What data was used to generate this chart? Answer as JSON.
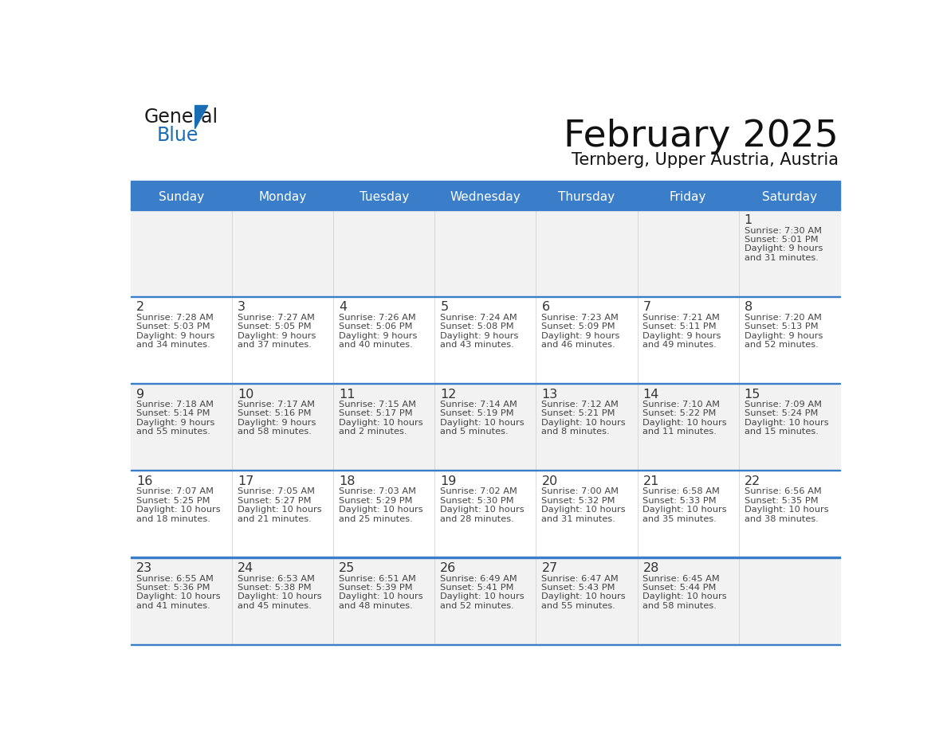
{
  "title": "February 2025",
  "subtitle": "Ternberg, Upper Austria, Austria",
  "days_of_week": [
    "Sunday",
    "Monday",
    "Tuesday",
    "Wednesday",
    "Thursday",
    "Friday",
    "Saturday"
  ],
  "header_bg": "#3A7DC9",
  "header_text_color": "#FFFFFF",
  "row_bg_odd": "#F2F2F2",
  "row_bg_even": "#FFFFFF",
  "separator_color": "#3A7DC9",
  "day_number_color": "#333333",
  "cell_text_color": "#444444",
  "calendar_data": [
    {
      "day": 1,
      "col": 6,
      "row": 0,
      "sunrise": "7:30 AM",
      "sunset": "5:01 PM",
      "daylight_hours": 9,
      "daylight_minutes": 31
    },
    {
      "day": 2,
      "col": 0,
      "row": 1,
      "sunrise": "7:28 AM",
      "sunset": "5:03 PM",
      "daylight_hours": 9,
      "daylight_minutes": 34
    },
    {
      "day": 3,
      "col": 1,
      "row": 1,
      "sunrise": "7:27 AM",
      "sunset": "5:05 PM",
      "daylight_hours": 9,
      "daylight_minutes": 37
    },
    {
      "day": 4,
      "col": 2,
      "row": 1,
      "sunrise": "7:26 AM",
      "sunset": "5:06 PM",
      "daylight_hours": 9,
      "daylight_minutes": 40
    },
    {
      "day": 5,
      "col": 3,
      "row": 1,
      "sunrise": "7:24 AM",
      "sunset": "5:08 PM",
      "daylight_hours": 9,
      "daylight_minutes": 43
    },
    {
      "day": 6,
      "col": 4,
      "row": 1,
      "sunrise": "7:23 AM",
      "sunset": "5:09 PM",
      "daylight_hours": 9,
      "daylight_minutes": 46
    },
    {
      "day": 7,
      "col": 5,
      "row": 1,
      "sunrise": "7:21 AM",
      "sunset": "5:11 PM",
      "daylight_hours": 9,
      "daylight_minutes": 49
    },
    {
      "day": 8,
      "col": 6,
      "row": 1,
      "sunrise": "7:20 AM",
      "sunset": "5:13 PM",
      "daylight_hours": 9,
      "daylight_minutes": 52
    },
    {
      "day": 9,
      "col": 0,
      "row": 2,
      "sunrise": "7:18 AM",
      "sunset": "5:14 PM",
      "daylight_hours": 9,
      "daylight_minutes": 55
    },
    {
      "day": 10,
      "col": 1,
      "row": 2,
      "sunrise": "7:17 AM",
      "sunset": "5:16 PM",
      "daylight_hours": 9,
      "daylight_minutes": 58
    },
    {
      "day": 11,
      "col": 2,
      "row": 2,
      "sunrise": "7:15 AM",
      "sunset": "5:17 PM",
      "daylight_hours": 10,
      "daylight_minutes": 2
    },
    {
      "day": 12,
      "col": 3,
      "row": 2,
      "sunrise": "7:14 AM",
      "sunset": "5:19 PM",
      "daylight_hours": 10,
      "daylight_minutes": 5
    },
    {
      "day": 13,
      "col": 4,
      "row": 2,
      "sunrise": "7:12 AM",
      "sunset": "5:21 PM",
      "daylight_hours": 10,
      "daylight_minutes": 8
    },
    {
      "day": 14,
      "col": 5,
      "row": 2,
      "sunrise": "7:10 AM",
      "sunset": "5:22 PM",
      "daylight_hours": 10,
      "daylight_minutes": 11
    },
    {
      "day": 15,
      "col": 6,
      "row": 2,
      "sunrise": "7:09 AM",
      "sunset": "5:24 PM",
      "daylight_hours": 10,
      "daylight_minutes": 15
    },
    {
      "day": 16,
      "col": 0,
      "row": 3,
      "sunrise": "7:07 AM",
      "sunset": "5:25 PM",
      "daylight_hours": 10,
      "daylight_minutes": 18
    },
    {
      "day": 17,
      "col": 1,
      "row": 3,
      "sunrise": "7:05 AM",
      "sunset": "5:27 PM",
      "daylight_hours": 10,
      "daylight_minutes": 21
    },
    {
      "day": 18,
      "col": 2,
      "row": 3,
      "sunrise": "7:03 AM",
      "sunset": "5:29 PM",
      "daylight_hours": 10,
      "daylight_minutes": 25
    },
    {
      "day": 19,
      "col": 3,
      "row": 3,
      "sunrise": "7:02 AM",
      "sunset": "5:30 PM",
      "daylight_hours": 10,
      "daylight_minutes": 28
    },
    {
      "day": 20,
      "col": 4,
      "row": 3,
      "sunrise": "7:00 AM",
      "sunset": "5:32 PM",
      "daylight_hours": 10,
      "daylight_minutes": 31
    },
    {
      "day": 21,
      "col": 5,
      "row": 3,
      "sunrise": "6:58 AM",
      "sunset": "5:33 PM",
      "daylight_hours": 10,
      "daylight_minutes": 35
    },
    {
      "day": 22,
      "col": 6,
      "row": 3,
      "sunrise": "6:56 AM",
      "sunset": "5:35 PM",
      "daylight_hours": 10,
      "daylight_minutes": 38
    },
    {
      "day": 23,
      "col": 0,
      "row": 4,
      "sunrise": "6:55 AM",
      "sunset": "5:36 PM",
      "daylight_hours": 10,
      "daylight_minutes": 41
    },
    {
      "day": 24,
      "col": 1,
      "row": 4,
      "sunrise": "6:53 AM",
      "sunset": "5:38 PM",
      "daylight_hours": 10,
      "daylight_minutes": 45
    },
    {
      "day": 25,
      "col": 2,
      "row": 4,
      "sunrise": "6:51 AM",
      "sunset": "5:39 PM",
      "daylight_hours": 10,
      "daylight_minutes": 48
    },
    {
      "day": 26,
      "col": 3,
      "row": 4,
      "sunrise": "6:49 AM",
      "sunset": "5:41 PM",
      "daylight_hours": 10,
      "daylight_minutes": 52
    },
    {
      "day": 27,
      "col": 4,
      "row": 4,
      "sunrise": "6:47 AM",
      "sunset": "5:43 PM",
      "daylight_hours": 10,
      "daylight_minutes": 55
    },
    {
      "day": 28,
      "col": 5,
      "row": 4,
      "sunrise": "6:45 AM",
      "sunset": "5:44 PM",
      "daylight_hours": 10,
      "daylight_minutes": 58
    }
  ],
  "num_rows": 5,
  "num_cols": 7,
  "logo_color_general": "#1a1a1a",
  "logo_color_blue": "#1a6db5",
  "logo_triangle_color": "#1a6db5"
}
